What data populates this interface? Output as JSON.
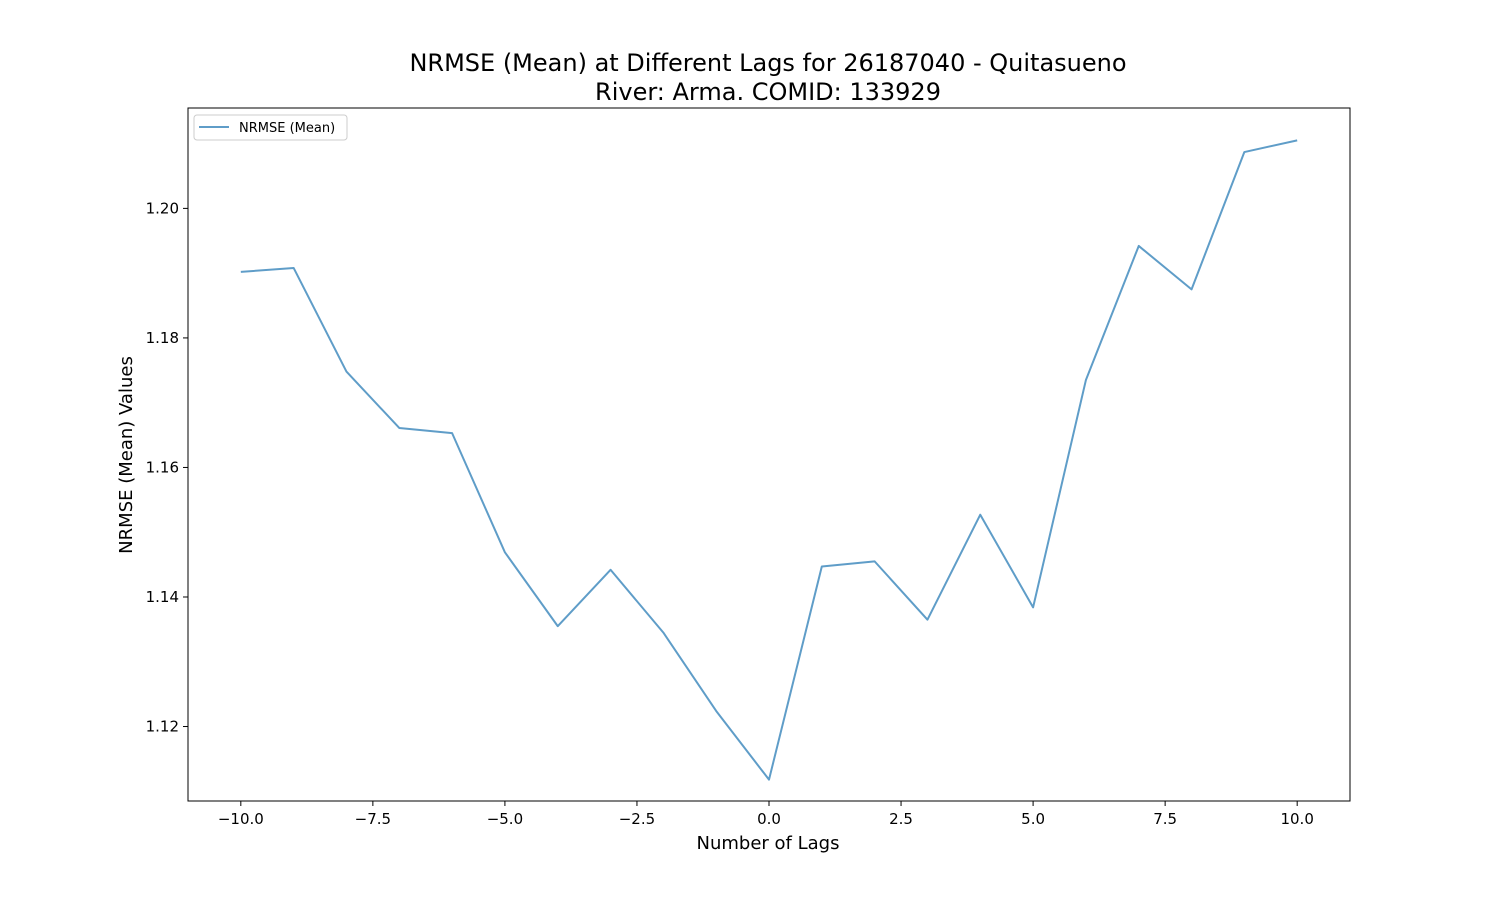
{
  "chart_data": {
    "type": "line",
    "title_lines": [
      "NRMSE (Mean) at Different Lags for 26187040 - Quitasueno",
      "River: Arma. COMID: 133929"
    ],
    "xlabel": "Number of Lags",
    "ylabel": "NRMSE (Mean) Values",
    "xlim": [
      -11,
      11
    ],
    "ylim": [
      1.1085,
      1.2155
    ],
    "x_ticks": [
      -10.0,
      -7.5,
      -5.0,
      -2.5,
      0.0,
      2.5,
      5.0,
      7.5,
      10.0
    ],
    "x_tick_labels": [
      "−10.0",
      "−7.5",
      "−5.0",
      "−2.5",
      "0.0",
      "2.5",
      "5.0",
      "7.5",
      "10.0"
    ],
    "y_ticks": [
      1.12,
      1.14,
      1.16,
      1.18,
      1.2
    ],
    "y_tick_labels": [
      "1.12",
      "1.14",
      "1.16",
      "1.18",
      "1.20"
    ],
    "grid": false,
    "legend_position": "top-left",
    "series": [
      {
        "name": "NRMSE (Mean)",
        "color": "#5f9dc8",
        "x": [
          -10,
          -9,
          -8,
          -7,
          -6,
          -5,
          -4,
          -3,
          -2,
          -1,
          0,
          1,
          2,
          3,
          4,
          5,
          6,
          7,
          8,
          9,
          10
        ],
        "values": [
          1.1902,
          1.1908,
          1.1748,
          1.1661,
          1.1653,
          1.1469,
          1.1355,
          1.1442,
          1.1345,
          1.1224,
          1.1118,
          1.1447,
          1.1455,
          1.1365,
          1.1527,
          1.1384,
          1.1735,
          1.1942,
          1.1875,
          1.2087,
          1.2105
        ]
      }
    ]
  }
}
